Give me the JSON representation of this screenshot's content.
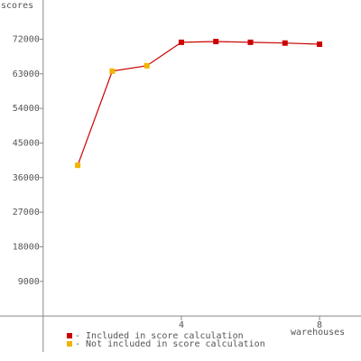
{
  "chart_data": {
    "type": "line",
    "y_label": "scores",
    "x_label": "warehouses",
    "line_color": "#cc0000",
    "series": [
      {
        "name": "- Included in score calculation",
        "color": "#cc0000",
        "x": [
          4,
          5,
          6,
          7,
          8
        ],
        "values": [
          71200,
          71400,
          71200,
          71000,
          70700
        ]
      },
      {
        "name": "- Not included in score calculation",
        "color": "#f0b400",
        "x": [
          1,
          2,
          3
        ],
        "values": [
          39200,
          63700,
          65100
        ]
      }
    ],
    "xlim": [
      -1.25,
      9.2
    ],
    "xticks": [
      4,
      8
    ],
    "ylim": [
      -11700,
      82200
    ],
    "yticks": [
      9000,
      18000,
      27000,
      36000,
      45000,
      54000,
      63000,
      72000
    ]
  }
}
